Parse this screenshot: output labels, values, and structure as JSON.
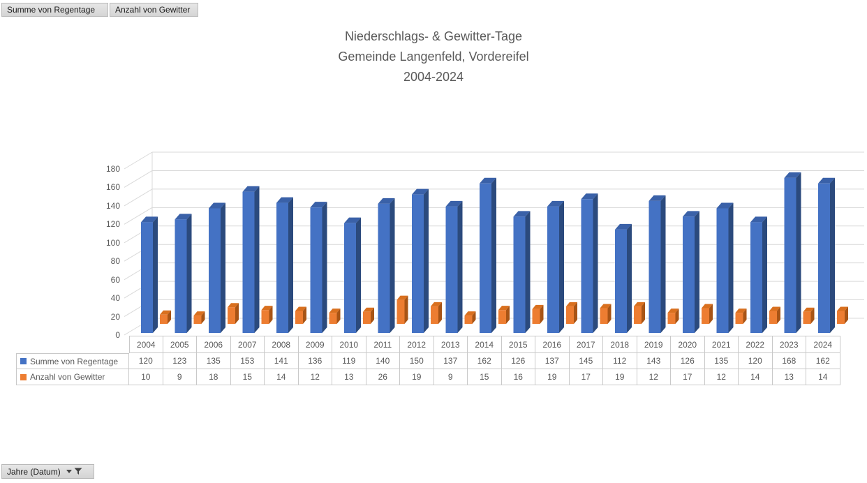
{
  "pivot_buttons": {
    "value_fields": [
      {
        "label": "Summe von Regentage"
      },
      {
        "label": "Anzahl von Gewitter"
      }
    ],
    "axis_field": {
      "label": "Jahre (Datum)"
    }
  },
  "chart": {
    "title_lines": [
      "Niederschlags- & Gewitter-Tage",
      "Gemeinde Langenfeld, Vordereifel",
      "2004-2024"
    ]
  },
  "chart_data": {
    "type": "bar",
    "subtype": "3d-column",
    "title": "Niederschlags- & Gewitter-Tage Gemeinde Langenfeld, Vordereifel 2004-2024",
    "categories": [
      2004,
      2005,
      2006,
      2007,
      2008,
      2009,
      2010,
      2011,
      2012,
      2013,
      2014,
      2015,
      2016,
      2017,
      2018,
      2019,
      2020,
      2021,
      2022,
      2023,
      2024
    ],
    "series": [
      {
        "name": "Summe von Regentage",
        "color": "#4472C4",
        "values": [
          120,
          123,
          135,
          153,
          141,
          136,
          119,
          140,
          150,
          137,
          162,
          126,
          137,
          145,
          112,
          143,
          126,
          135,
          120,
          168,
          162
        ]
      },
      {
        "name": "Anzahl von Gewitter",
        "color": "#ED7D31",
        "values": [
          10,
          9,
          18,
          15,
          14,
          12,
          13,
          26,
          19,
          9,
          15,
          16,
          19,
          17,
          19,
          12,
          17,
          12,
          14,
          13,
          14
        ]
      }
    ],
    "xlabel": "",
    "ylabel": "",
    "ylim": [
      0,
      180
    ],
    "ytick_step": 20,
    "yticks": [
      0,
      20,
      40,
      60,
      80,
      100,
      120,
      140,
      160,
      180
    ],
    "grid": true,
    "legend_position": "data-table-left",
    "data_table_shown": true
  },
  "colors": {
    "grid": "#D9D9D9",
    "table_border": "#C9C9C9",
    "text": "#595959",
    "title": "#595959",
    "blue_front": "#4472C4",
    "blue_top": "#3A61A8",
    "blue_side": "#2B4A7D",
    "orange_front": "#ED7D31",
    "orange_top": "#D9701F",
    "orange_side": "#A85415"
  }
}
